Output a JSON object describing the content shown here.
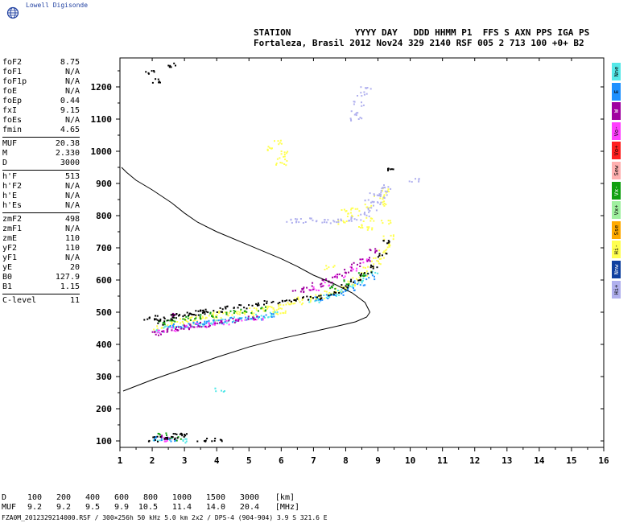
{
  "brand": {
    "name": "Lowell Digisonde",
    "logo_icon": "globe-icon"
  },
  "header": {
    "line1": "STATION            YYYY DAY   DDD HHMM P1  FFS S AXN PPS IGA PS",
    "line2": "Fortaleza, Brasil 2012 Nov24 329 2140 RSF 005 2 713 100 +0+ B2"
  },
  "params": {
    "group1": [
      {
        "label": "foF2",
        "value": "8.75"
      },
      {
        "label": "foF1",
        "value": "N/A"
      },
      {
        "label": "foF1p",
        "value": "N/A"
      },
      {
        "label": "foE",
        "value": "N/A"
      },
      {
        "label": "foEp",
        "value": "0.44"
      },
      {
        "label": "fxI",
        "value": "9.15"
      },
      {
        "label": "foEs",
        "value": "N/A"
      },
      {
        "label": "fmin",
        "value": "4.65"
      }
    ],
    "group2": [
      {
        "label": "MUF",
        "value": "20.38"
      },
      {
        "label": "M",
        "value": "2.330"
      },
      {
        "label": "D",
        "value": "3000"
      }
    ],
    "group3": [
      {
        "label": "h'F",
        "value": "513"
      },
      {
        "label": "h'F2",
        "value": "N/A"
      },
      {
        "label": "h'E",
        "value": "N/A"
      },
      {
        "label": "h'Es",
        "value": "N/A"
      }
    ],
    "group4": [
      {
        "label": "zmF2",
        "value": "498"
      },
      {
        "label": "zmF1",
        "value": "N/A"
      },
      {
        "label": "zmE",
        "value": "110"
      },
      {
        "label": "yF2",
        "value": "110"
      },
      {
        "label": "yF1",
        "value": "N/A"
      },
      {
        "label": "yE",
        "value": "20"
      },
      {
        "label": "B0",
        "value": "127.9"
      },
      {
        "label": "B1",
        "value": "1.15"
      }
    ],
    "group5": [
      {
        "label": "C-level",
        "value": "11"
      }
    ]
  },
  "legend": [
    {
      "label": "Nne",
      "color": "#55e8e8"
    },
    {
      "label": "E",
      "color": "#1e90ff"
    },
    {
      "label": "W",
      "color": "#a000a0"
    },
    {
      "label": "Vo-",
      "color": "#ff40ff"
    },
    {
      "label": "Vo+",
      "color": "#ff2020"
    },
    {
      "label": "Sew",
      "color": "#ffb0b0"
    },
    {
      "label": "Vx-",
      "color": "#10a010"
    },
    {
      "label": "Vx+",
      "color": "#a0f0a0"
    },
    {
      "label": "Sse",
      "color": "#ffaa00"
    },
    {
      "label": "Hi-",
      "color": "#ffff50"
    },
    {
      "label": "Nnw",
      "color": "#1040a0"
    },
    {
      "label": "Hi+",
      "color": "#b0b0ee"
    }
  ],
  "muf_table": {
    "d_label": "D",
    "d_values": [
      "100",
      "200",
      "400",
      "600",
      "800",
      "1000",
      "1500",
      "3000"
    ],
    "d_unit": "[km]",
    "muf_label": "MUF",
    "muf_values": [
      "9.2",
      "9.2",
      "9.5",
      "9.9",
      "10.5",
      "11.4",
      "14.0",
      "20.4"
    ],
    "muf_unit": "[MHz]"
  },
  "footer": "FZA0M_2012329214000.RSF / 300×256h 50 kHz 5.0 km 2x2 / DPS-4 (904-904)  3.9 S 321.6 E",
  "chart_data": {
    "type": "scatter",
    "xlim": [
      1,
      16
    ],
    "ylim": [
      80,
      1290
    ],
    "x_ticks": [
      1,
      2,
      3,
      4,
      5,
      6,
      7,
      8,
      9,
      10,
      11,
      12,
      13,
      14,
      15,
      16
    ],
    "x_tick_labels": [
      "1",
      "2",
      "3",
      "4",
      "5",
      "6",
      "7",
      "8",
      "9",
      "10",
      "11",
      "12",
      "13",
      "14",
      "15",
      "16"
    ],
    "y_ticks": [
      100,
      200,
      300,
      400,
      500,
      600,
      700,
      800,
      900,
      1000,
      1100,
      1200
    ],
    "y_tick_labels": [
      "100",
      "200",
      "300",
      "400",
      "500",
      "600",
      "700",
      "800",
      "900",
      "1000",
      "1100",
      "1200"
    ],
    "xlabel": "",
    "ylabel": "",
    "profile_curve": {
      "color": "#000000",
      "x": [
        1.1,
        2.0,
        3.0,
        4.0,
        5.0,
        6.0,
        7.0,
        7.8,
        8.3,
        8.65,
        8.75,
        8.6,
        8.2,
        7.6,
        7.0,
        6.5,
        6.0,
        5.0,
        4.0,
        3.4,
        3.0,
        2.6,
        2.0,
        1.5,
        1.2,
        1.05
      ],
      "y": [
        255,
        290,
        325,
        360,
        392,
        418,
        440,
        458,
        470,
        485,
        500,
        530,
        560,
        590,
        615,
        642,
        666,
        708,
        750,
        780,
        808,
        840,
        880,
        910,
        935,
        950
      ]
    },
    "echo_series": [
      {
        "color": "#ffff50",
        "x": [
          2.2,
          2.5,
          2.8,
          3.0,
          3.2,
          3.5,
          3.8,
          4.0,
          4.2,
          4.5,
          4.8,
          5.0,
          5.3,
          5.6,
          5.9,
          6.2,
          6.5,
          6.8,
          7.0,
          7.2,
          7.5,
          7.7,
          7.9,
          8.1,
          8.3,
          8.5,
          8.7,
          8.9,
          9.0,
          9.1,
          9.2,
          9.3,
          8.8,
          8.4,
          7.9,
          7.5,
          3.2,
          4.0,
          5.0,
          6.0,
          6.5,
          5.8,
          5.6,
          5.7,
          5.9,
          9.0,
          9.2,
          9.1,
          8.6,
          8.3,
          8.0,
          8.2,
          8.7,
          9.2,
          6.0,
          6.1,
          5.95
        ],
        "y": [
          455,
          465,
          470,
          478,
          482,
          485,
          490,
          495,
          498,
          500,
          503,
          508,
          512,
          516,
          520,
          527,
          533,
          540,
          546,
          552,
          560,
          570,
          580,
          592,
          605,
          620,
          636,
          655,
          672,
          690,
          710,
          735,
          760,
          772,
          780,
          640,
          470,
          482,
          494,
          505,
          545,
          500,
          515,
          1010,
          1030,
          860,
          880,
          840,
          830,
          822,
          818,
          805,
          790,
          780,
          980,
          1000,
          960
        ]
      },
      {
        "color": "#b0b0ee",
        "x": [
          6.3,
          6.6,
          7.0,
          7.3,
          7.6,
          8.0,
          8.3,
          8.6,
          8.8,
          9.0,
          9.1,
          9.2,
          8.7,
          8.9,
          9.3,
          8.2,
          8.4,
          8.6,
          8.3,
          8.5,
          10.1
        ],
        "y": [
          785,
          785,
          790,
          788,
          786,
          788,
          795,
          805,
          820,
          840,
          860,
          880,
          848,
          870,
          890,
          1120,
          1150,
          1200,
          1100,
          1180,
          910
        ]
      },
      {
        "color": "#55e8e8",
        "x": [
          2.2,
          2.5,
          2.8,
          3.1,
          3.4,
          3.7,
          4.0,
          4.3,
          4.6,
          4.9,
          5.2,
          5.5,
          5.8,
          7.0,
          7.3,
          7.6,
          7.9,
          8.2,
          8.5,
          8.8,
          2.1,
          2.5,
          2.9,
          4.1
        ],
        "y": [
          447,
          452,
          456,
          460,
          464,
          468,
          472,
          476,
          480,
          484,
          488,
          492,
          496,
          540,
          548,
          558,
          570,
          584,
          600,
          622,
          110,
          112,
          104,
          260
        ]
      },
      {
        "color": "#1e90ff",
        "x": [
          2.6,
          3.0,
          3.3,
          3.6,
          4.0,
          4.4,
          4.8,
          5.2,
          5.6,
          7.2,
          7.5,
          7.8,
          8.1,
          8.4,
          8.7,
          2.2,
          2.6
        ],
        "y": [
          458,
          462,
          466,
          470,
          474,
          478,
          482,
          486,
          490,
          545,
          552,
          562,
          576,
          592,
          612,
          108,
          104
        ]
      },
      {
        "color": "#ff40ff",
        "x": [
          2.3,
          2.7,
          3.1,
          3.5,
          3.8,
          4.2,
          4.7,
          5.3,
          7.0,
          7.4,
          7.8,
          8.2,
          8.6,
          2.4
        ],
        "y": [
          440,
          450,
          456,
          462,
          466,
          470,
          476,
          482,
          575,
          592,
          612,
          636,
          662,
          108
        ]
      },
      {
        "color": "#a000a0",
        "x": [
          2.1,
          2.4,
          2.7,
          3.0,
          3.3,
          3.6,
          4.0,
          4.5,
          5.1,
          6.5,
          6.8,
          7.1,
          7.4,
          7.7,
          8.0,
          8.3,
          8.6,
          8.9,
          2.7,
          2.3
        ],
        "y": [
          438,
          446,
          452,
          456,
          460,
          464,
          470,
          476,
          482,
          570,
          578,
          588,
          600,
          614,
          630,
          648,
          668,
          692,
          495,
          112
        ]
      },
      {
        "color": "#10a010",
        "x": [
          2.2,
          2.6,
          3.0,
          3.4,
          3.9,
          4.4,
          4.9,
          5.4,
          7.6,
          8.0,
          8.4,
          2.3,
          2.7
        ],
        "y": [
          470,
          478,
          484,
          488,
          494,
          500,
          506,
          512,
          580,
          596,
          618,
          120,
          108
        ]
      },
      {
        "color": "#000000",
        "x": [
          1.9,
          2.1,
          2.3,
          2.5,
          2.7,
          2.9,
          3.1,
          3.3,
          3.5,
          3.7,
          4.0,
          4.4,
          4.8,
          5.2,
          5.6,
          6.0,
          6.4,
          6.8,
          7.2,
          7.6,
          8.0,
          8.3,
          8.6,
          8.9,
          9.1,
          9.2,
          9.3,
          2.0,
          2.3,
          2.6,
          2.8,
          3.0,
          3.5,
          4.0,
          1.9,
          2.05,
          2.6
        ],
        "y": [
          480,
          485,
          470,
          480,
          490,
          495,
          498,
          500,
          503,
          506,
          510,
          515,
          520,
          525,
          530,
          535,
          540,
          545,
          550,
          562,
          580,
          600,
          622,
          646,
          680,
          720,
          950,
          108,
          115,
          110,
          130,
          118,
          104,
          108,
          1250,
          1220,
          1270
        ]
      }
    ]
  }
}
